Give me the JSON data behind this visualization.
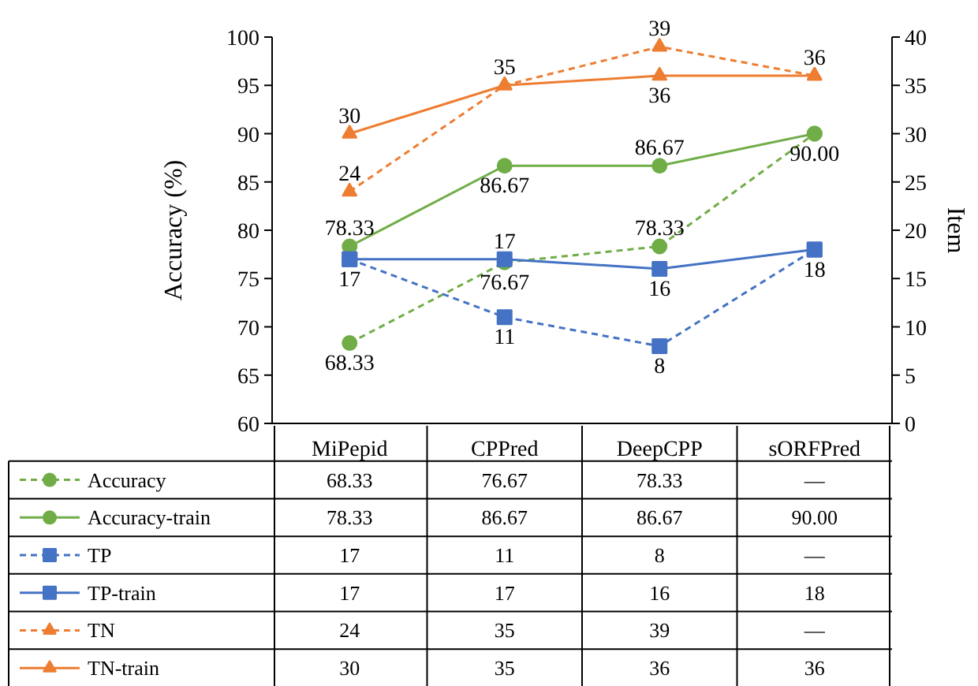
{
  "chart_data": {
    "type": "line",
    "categories": [
      "MiPepid",
      "CPPred",
      "DeepCPP",
      "sORFPred"
    ],
    "ylabel": "Accuracy (%)",
    "y2label": "Item",
    "ylim": [
      60,
      100
    ],
    "yticks": [
      60,
      65,
      70,
      75,
      80,
      85,
      90,
      95,
      100
    ],
    "y2lim": [
      0,
      40
    ],
    "y2ticks": [
      0,
      5,
      10,
      15,
      20,
      25,
      30,
      35,
      40
    ],
    "grid": false,
    "legend": "bottom",
    "data_labels": true,
    "series": [
      {
        "name": "Accuracy",
        "color": "#70ad47",
        "marker": "circle",
        "line_style": "dashed",
        "values": [
          68.33,
          76.67,
          78.33,
          90.0
        ],
        "value_labels": [
          "68.33",
          "76.67",
          "78.33",
          "—"
        ]
      },
      {
        "name": "Accuracy-train",
        "color": "#70ad47",
        "marker": "circle",
        "line_style": "solid",
        "values": [
          78.33,
          86.67,
          86.67,
          90.0
        ],
        "value_labels": [
          "78.33",
          "86.67",
          "86.67",
          "90.00"
        ]
      },
      {
        "name": "TP",
        "color": "#4472c4",
        "marker": "square",
        "line_style": "dashed",
        "axis": "y2",
        "values": [
          17,
          11,
          8,
          18
        ],
        "value_labels": [
          "17",
          "11",
          "8",
          "—"
        ]
      },
      {
        "name": "TP-train",
        "color": "#4472c4",
        "marker": "square",
        "line_style": "solid",
        "axis": "y2",
        "values": [
          17,
          17,
          16,
          18
        ],
        "value_labels": [
          "17",
          "17",
          "16",
          "18"
        ]
      },
      {
        "name": "TN",
        "color": "#ed7d31",
        "marker": "triangle",
        "line_style": "dashed",
        "axis": "y2",
        "values": [
          24,
          35,
          39,
          36
        ],
        "value_labels": [
          "24",
          "35",
          "39",
          "—"
        ]
      },
      {
        "name": "TN-train",
        "color": "#ed7d31",
        "marker": "triangle",
        "line_style": "solid",
        "axis": "y2",
        "values": [
          30,
          35,
          36,
          36
        ],
        "value_labels": [
          "30",
          "35",
          "36",
          "36"
        ]
      }
    ]
  }
}
